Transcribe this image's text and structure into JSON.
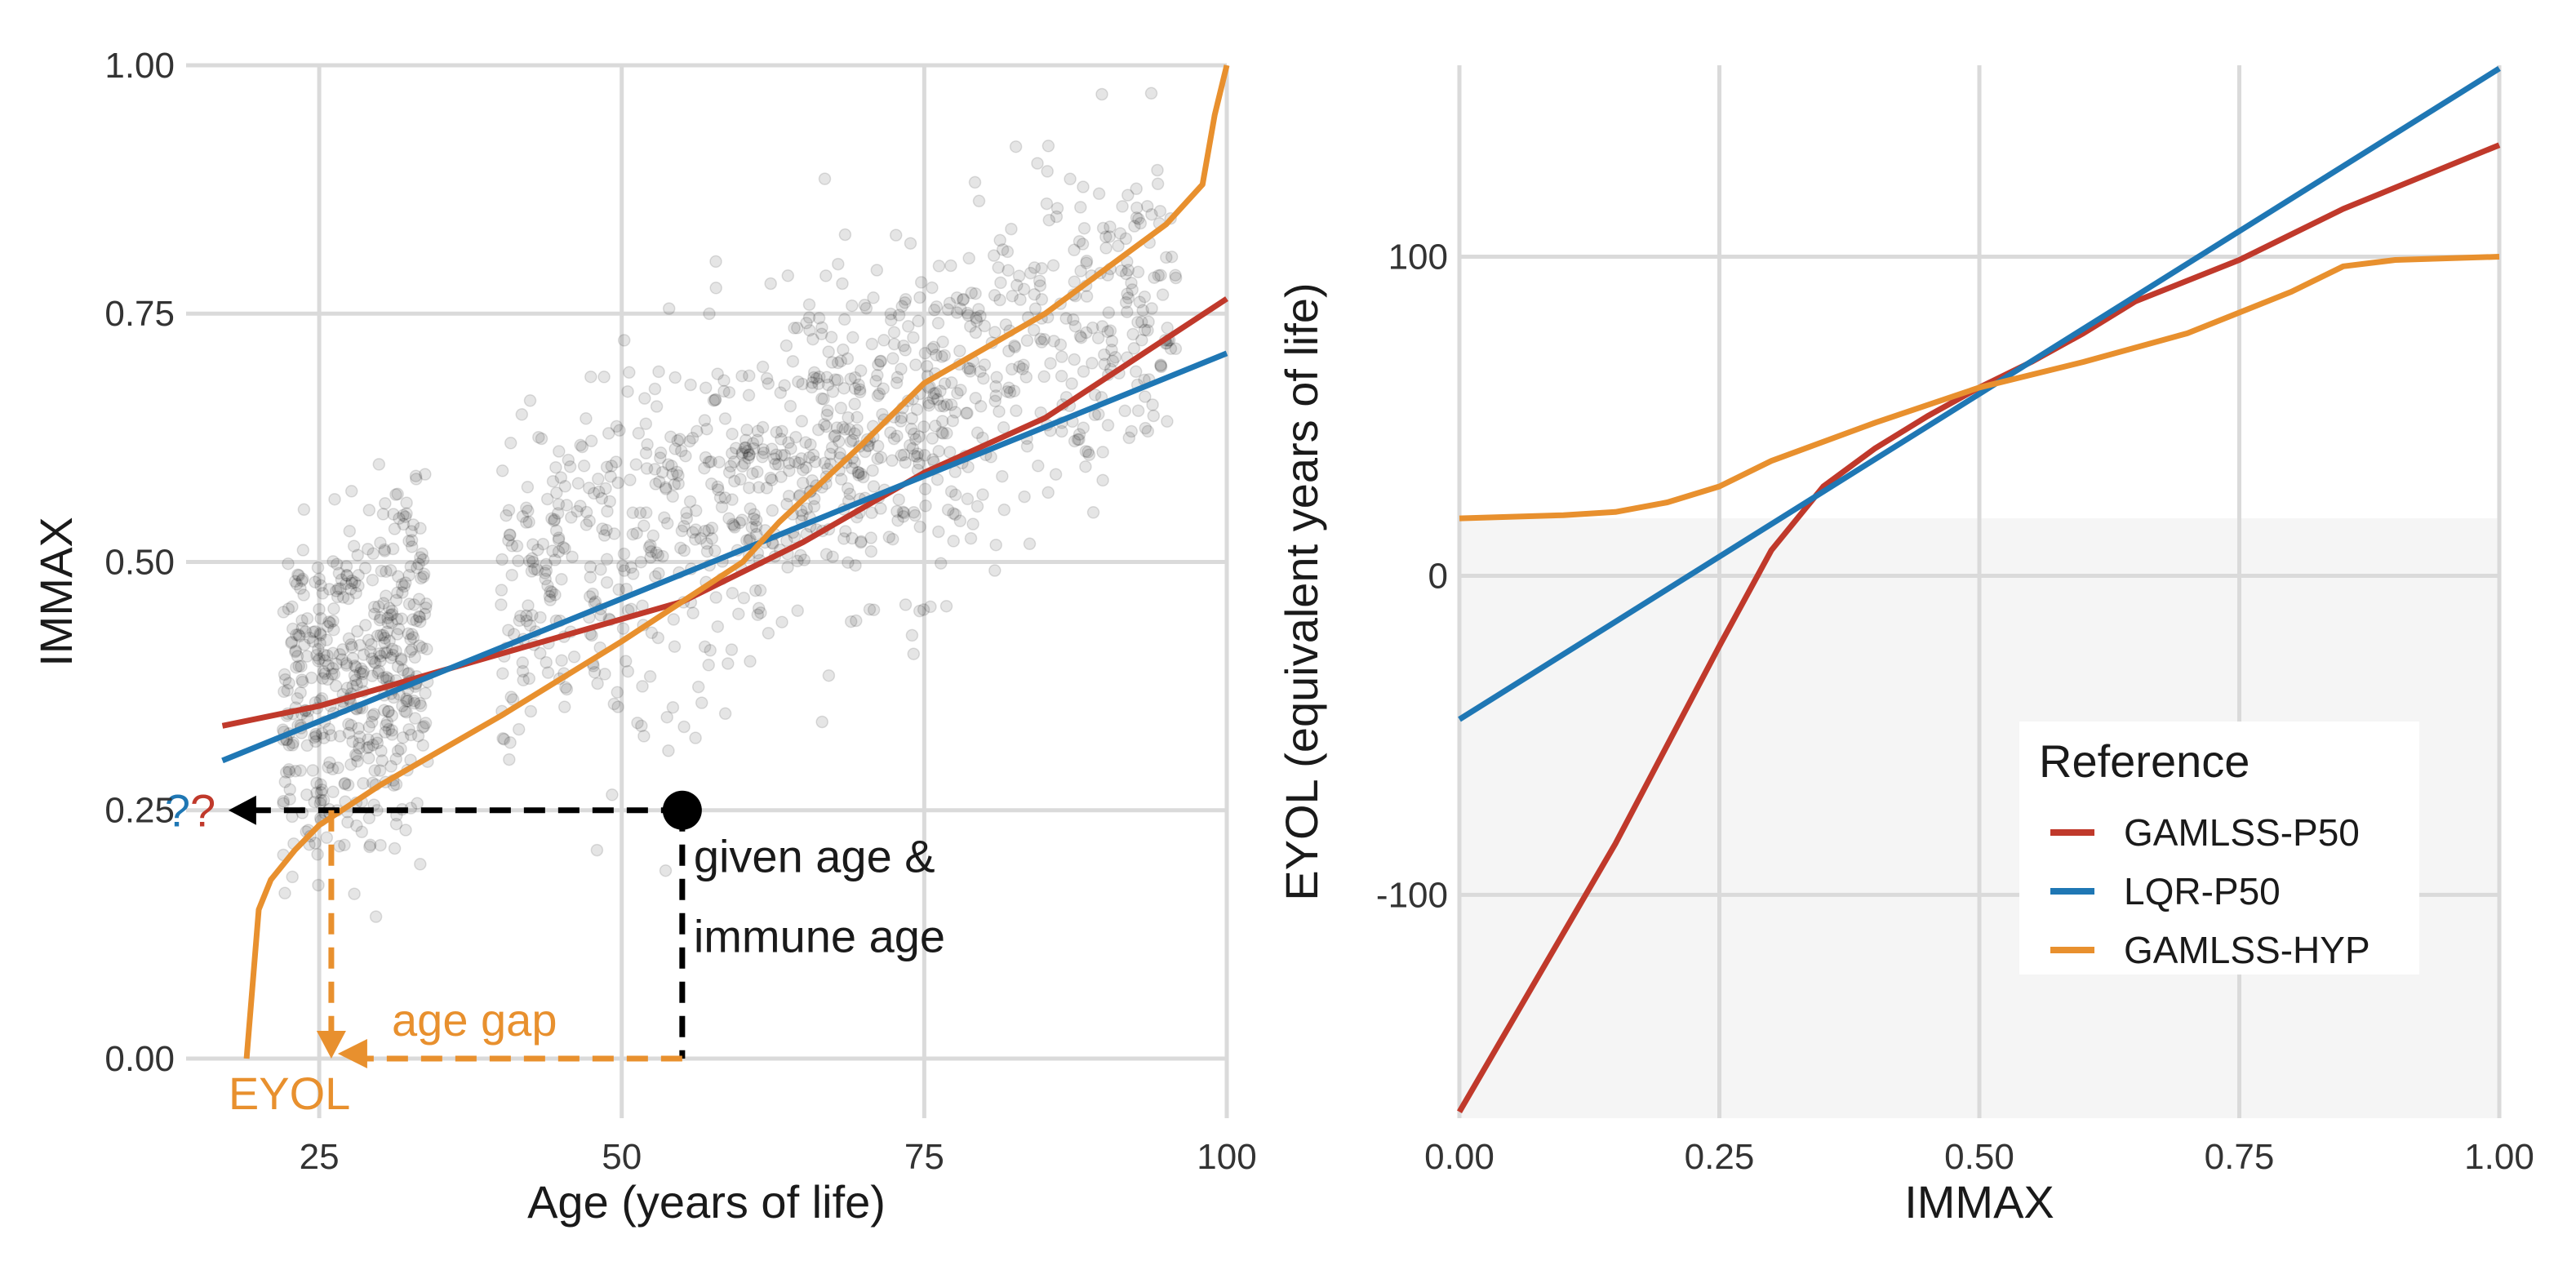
{
  "chart_data": [
    {
      "type": "scatter",
      "panel": "left",
      "xlabel": "Age (years of life)",
      "ylabel": "IMMAX",
      "xlim": [
        14,
        100
      ],
      "ylim": [
        -0.06,
        1.0
      ],
      "grid": true,
      "xticks": [
        {
          "value": 25,
          "label": "25"
        },
        {
          "value": 50,
          "label": "50"
        },
        {
          "value": 75,
          "label": "75"
        },
        {
          "value": 100,
          "label": "100"
        }
      ],
      "yticks": [
        {
          "value": 0.0,
          "label": "0.00"
        },
        {
          "value": 0.25,
          "label": "0.25"
        },
        {
          "value": 0.5,
          "label": "0.50"
        },
        {
          "value": 0.75,
          "label": "0.75"
        },
        {
          "value": 1.0,
          "label": "1.00"
        }
      ],
      "series": [
        {
          "name": "GAMLSS-P50",
          "color": "#C0392B",
          "points": [
            [
              17,
              0.335
            ],
            [
              25,
              0.355
            ],
            [
              35,
              0.39
            ],
            [
              45,
              0.425
            ],
            [
              55,
              0.46
            ],
            [
              65,
              0.52
            ],
            [
              75,
              0.59
            ],
            [
              85,
              0.645
            ],
            [
              100,
              0.765
            ]
          ]
        },
        {
          "name": "LQR-P50",
          "color": "#1F77B4",
          "points": [
            [
              17,
              0.3
            ],
            [
              100,
              0.71
            ]
          ]
        },
        {
          "name": "GAMLSS-HYP",
          "color": "#E8902E",
          "points": [
            [
              19,
              0.0
            ],
            [
              20,
              0.15
            ],
            [
              21,
              0.18
            ],
            [
              23,
              0.21
            ],
            [
              25,
              0.235
            ],
            [
              30,
              0.275
            ],
            [
              40,
              0.345
            ],
            [
              50,
              0.42
            ],
            [
              55,
              0.46
            ],
            [
              60,
              0.5
            ],
            [
              63,
              0.54
            ],
            [
              70,
              0.62
            ],
            [
              75,
              0.68
            ],
            [
              85,
              0.75
            ],
            [
              95,
              0.84
            ],
            [
              98,
              0.88
            ],
            [
              99,
              0.95
            ],
            [
              100,
              1.0
            ]
          ]
        }
      ],
      "scatter": {
        "description": "approx 1500 grey semi-transparent participant points",
        "age_range": [
          18,
          96
        ],
        "immax_range": [
          0.1,
          0.98
        ]
      },
      "annotations": {
        "given_point": {
          "age": 55,
          "immax": 0.25
        },
        "given_line1": "given age &",
        "given_line2": "immune age",
        "question_mark_1": "?",
        "question_mark_2": "?",
        "question_color_1": "#1F77B4",
        "question_color_2": "#C0392B",
        "age_gap_label": "age gap",
        "eyol_label": "EYOL",
        "eyol_age": 26,
        "eyol_color": "#E8902E",
        "guide_color": "#000000"
      }
    },
    {
      "type": "line",
      "panel": "right",
      "xlabel": "IMMAX",
      "ylabel": "EYOL (equivalent years of life)",
      "xlim": [
        0.0,
        1.0
      ],
      "ylim": [
        -170,
        160
      ],
      "grid": true,
      "shaded_region": {
        "below_y": 18,
        "color": "#F5F5F5"
      },
      "xticks": [
        {
          "value": 0.0,
          "label": "0.00"
        },
        {
          "value": 0.25,
          "label": "0.25"
        },
        {
          "value": 0.5,
          "label": "0.50"
        },
        {
          "value": 0.75,
          "label": "0.75"
        },
        {
          "value": 1.0,
          "label": "1.00"
        }
      ],
      "yticks": [
        {
          "value": -100,
          "label": "-100"
        },
        {
          "value": 0,
          "label": "0"
        },
        {
          "value": 100,
          "label": "100"
        }
      ],
      "series": [
        {
          "name": "GAMLSS-P50",
          "color": "#C0392B",
          "points": [
            [
              0.0,
              -168
            ],
            [
              0.05,
              -140
            ],
            [
              0.1,
              -112
            ],
            [
              0.15,
              -84
            ],
            [
              0.2,
              -53
            ],
            [
              0.25,
              -22
            ],
            [
              0.3,
              8
            ],
            [
              0.35,
              28
            ],
            [
              0.4,
              40
            ],
            [
              0.45,
              50
            ],
            [
              0.5,
              59
            ],
            [
              0.55,
              67
            ],
            [
              0.6,
              76
            ],
            [
              0.65,
              86
            ],
            [
              0.75,
              99
            ],
            [
              0.85,
              115
            ],
            [
              1.0,
              135
            ]
          ]
        },
        {
          "name": "LQR-P50",
          "color": "#1F77B4",
          "points": [
            [
              0.0,
              -45
            ],
            [
              1.0,
              159
            ]
          ]
        },
        {
          "name": "GAMLSS-HYP",
          "color": "#E8902E",
          "points": [
            [
              0.0,
              18
            ],
            [
              0.1,
              19
            ],
            [
              0.15,
              20
            ],
            [
              0.2,
              23
            ],
            [
              0.25,
              28
            ],
            [
              0.3,
              36
            ],
            [
              0.4,
              48
            ],
            [
              0.5,
              59
            ],
            [
              0.6,
              67
            ],
            [
              0.7,
              76
            ],
            [
              0.8,
              89
            ],
            [
              0.85,
              97
            ],
            [
              0.9,
              99
            ],
            [
              1.0,
              100
            ]
          ]
        }
      ],
      "legend": {
        "title": "Reference",
        "placement": "bottom-right",
        "entries": [
          {
            "label": "GAMLSS-P50",
            "color": "#C0392B"
          },
          {
            "label": "LQR-P50",
            "color": "#1F77B4"
          },
          {
            "label": "GAMLSS-HYP",
            "color": "#E8902E"
          }
        ]
      }
    }
  ]
}
